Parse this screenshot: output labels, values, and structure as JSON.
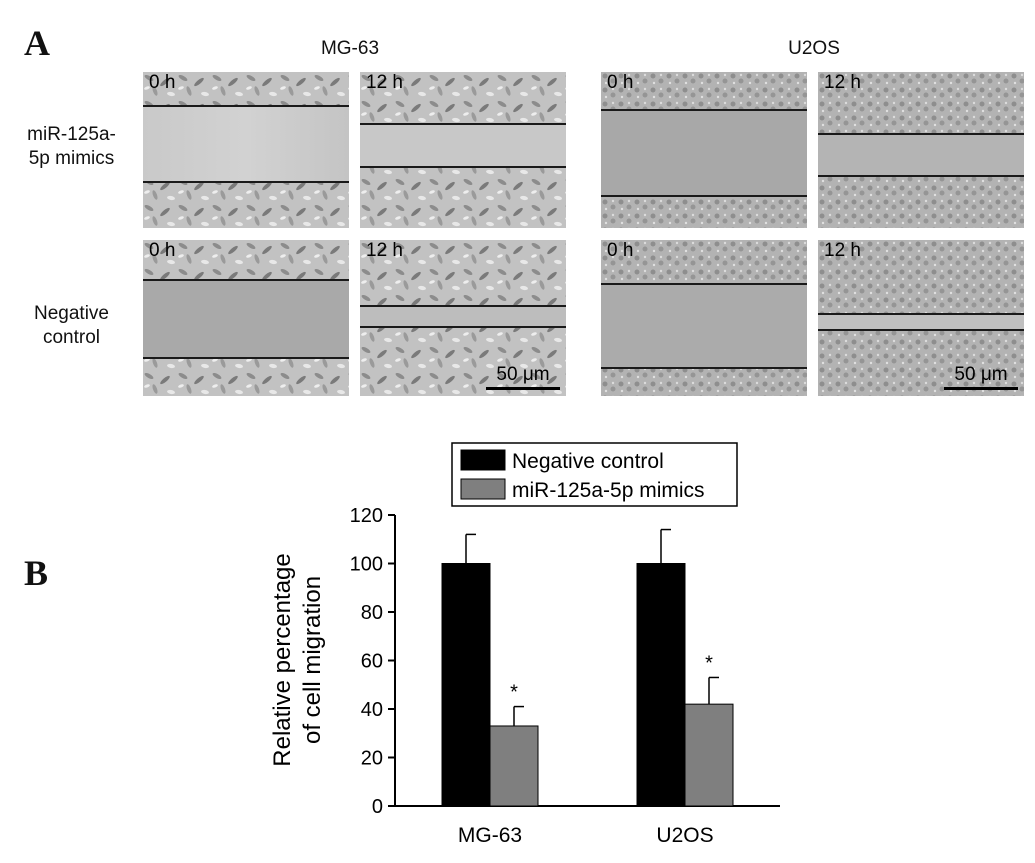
{
  "panel_a": {
    "letter": "A",
    "columns": [
      "MG-63",
      "U2OS"
    ],
    "rows": [
      {
        "label_line1": "miR-125a-",
        "label_line2": "5p mimics"
      },
      {
        "label_line1": "Negative",
        "label_line2": "control"
      }
    ],
    "time_labels": [
      "0 h",
      "12 h"
    ],
    "scale_bar": "50 μm"
  },
  "panel_b": {
    "letter": "B"
  },
  "chart_data": {
    "type": "bar",
    "categories": [
      "MG-63",
      "U2OS"
    ],
    "series": [
      {
        "name": "Negative control",
        "values": [
          100,
          100
        ],
        "errors": [
          12,
          14
        ],
        "color": "#000000"
      },
      {
        "name": "miR-125a-5p mimics",
        "values": [
          33,
          42
        ],
        "errors": [
          8,
          11
        ],
        "color": "#7f7f7f"
      }
    ],
    "annotations": [
      "*",
      "*"
    ],
    "ylabel_line1": "Relative percentage",
    "ylabel_line2": "of cell migration",
    "xlabel": "",
    "ylim": [
      0,
      120
    ],
    "yticks": [
      0,
      20,
      40,
      60,
      80,
      100,
      120
    ],
    "legend_position": "top",
    "grid": false
  }
}
